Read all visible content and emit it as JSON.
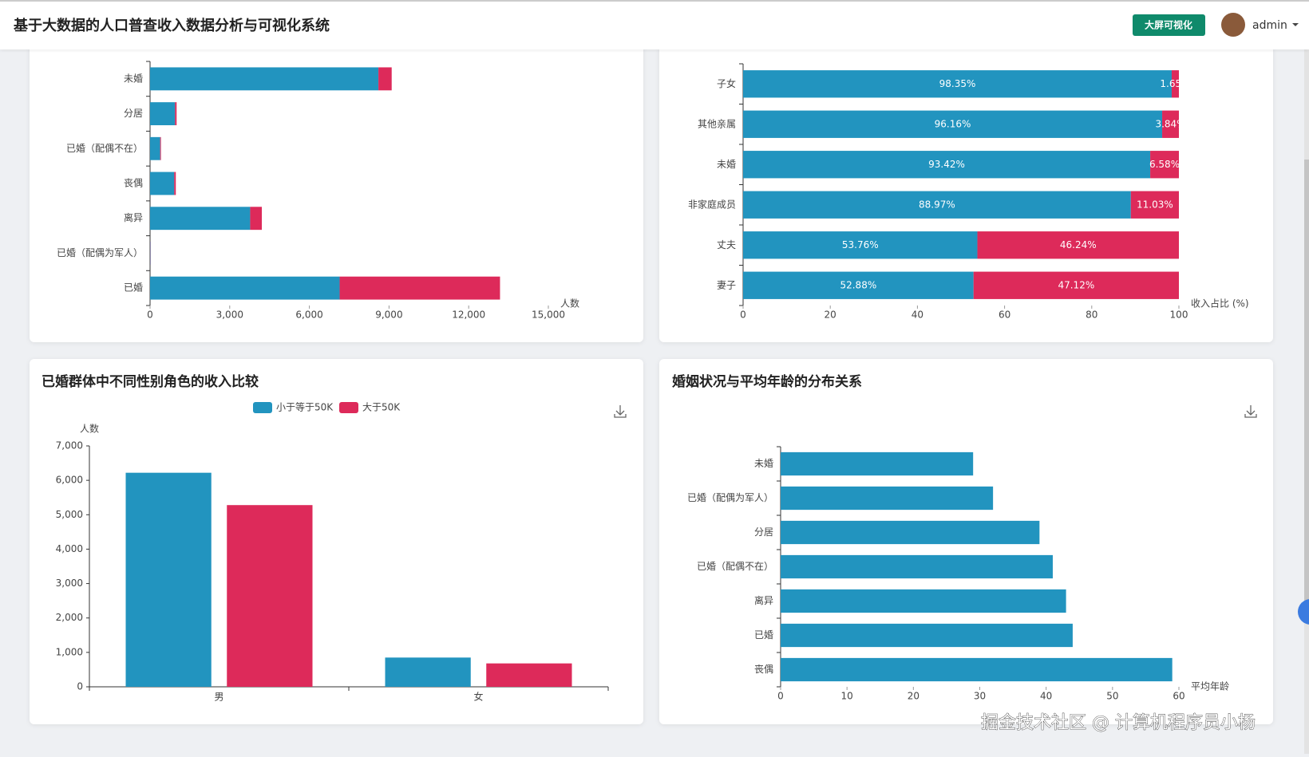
{
  "header": {
    "title": "基于大数据的人口普查收入数据分析与可视化系统",
    "button": "大屏可视化",
    "user": "admin"
  },
  "watermark": "掘金技术社区 @ 计算机程序员小杨",
  "chart_data": [
    {
      "type": "barh",
      "stacked": true,
      "x_label": "人数",
      "categories": [
        "已婚",
        "已婚（配偶为军人）",
        "离异",
        "丧偶",
        "已婚（配偶不在）",
        "分居",
        "未婚"
      ],
      "series": [
        {
          "color": "#2294bf",
          "values": [
            7140,
            14,
            3770,
            910,
            380,
            940,
            8600
          ]
        },
        {
          "color": "#dd2a5a",
          "values": [
            6040,
            9,
            440,
            60,
            30,
            60,
            500
          ]
        }
      ],
      "xlim": [
        0,
        15000
      ],
      "xticks": [
        0,
        {
          "value": 3000,
          "label": "3,000"
        },
        {
          "value": 6000,
          "label": "6,000"
        },
        {
          "value": 9000,
          "label": "9,000"
        },
        {
          "value": 12000,
          "label": "12,000"
        },
        {
          "value": 15000,
          "label": "15,000"
        }
      ]
    },
    {
      "type": "barh",
      "stacked": true,
      "x_label": "收入占比 (%)",
      "categories": [
        "妻子",
        "丈夫",
        "非家庭成员",
        "未婚",
        "其他亲属",
        "子女"
      ],
      "series": [
        {
          "color": "#2294bf",
          "values": [
            52.88,
            53.76,
            88.97,
            93.42,
            96.16,
            98.35
          ],
          "value_labels": [
            "52.88%",
            "53.76%",
            "88.97%",
            "93.42%",
            "96.16%",
            "98.35%"
          ]
        },
        {
          "color": "#dd2a5a",
          "values": [
            47.12,
            46.24,
            11.03,
            6.58,
            3.84,
            1.65
          ],
          "value_labels": [
            "47.12%",
            "46.24%",
            "11.03%",
            "6.58%",
            "3.84%",
            "1.65%"
          ]
        }
      ],
      "xlim": [
        0,
        100
      ],
      "xticks": [
        0,
        20,
        40,
        60,
        80,
        100
      ]
    },
    {
      "type": "bar",
      "title": "已婚群体中不同性别角色的收入比较",
      "y_label": "人数",
      "categories": [
        "男",
        "女"
      ],
      "series": [
        {
          "name": "小于等于50K",
          "color": "#2294bf",
          "values": [
            6220,
            850
          ]
        },
        {
          "name": "大于50K",
          "color": "#dd2a5a",
          "values": [
            5280,
            680
          ]
        }
      ],
      "ylim": [
        0,
        7000
      ],
      "yticks": [
        0,
        {
          "value": 1000,
          "label": "1,000"
        },
        {
          "value": 2000,
          "label": "2,000"
        },
        {
          "value": 3000,
          "label": "3,000"
        },
        {
          "value": 4000,
          "label": "4,000"
        },
        {
          "value": 5000,
          "label": "5,000"
        },
        {
          "value": 6000,
          "label": "6,000"
        },
        {
          "value": 7000,
          "label": "7,000"
        }
      ]
    },
    {
      "type": "barh",
      "title": "婚姻状况与平均年龄的分布关系",
      "x_label": "平均年龄",
      "categories": [
        "丧偶",
        "已婚",
        "离异",
        "已婚（配偶不在）",
        "分居",
        "已婚（配偶为军人）",
        "未婚"
      ],
      "series": [
        {
          "color": "#2294bf",
          "values": [
            59,
            44,
            43,
            41,
            39,
            32,
            29
          ]
        }
      ],
      "xlim": [
        0,
        60
      ],
      "xticks": [
        0,
        10,
        20,
        30,
        40,
        50,
        60
      ]
    }
  ]
}
